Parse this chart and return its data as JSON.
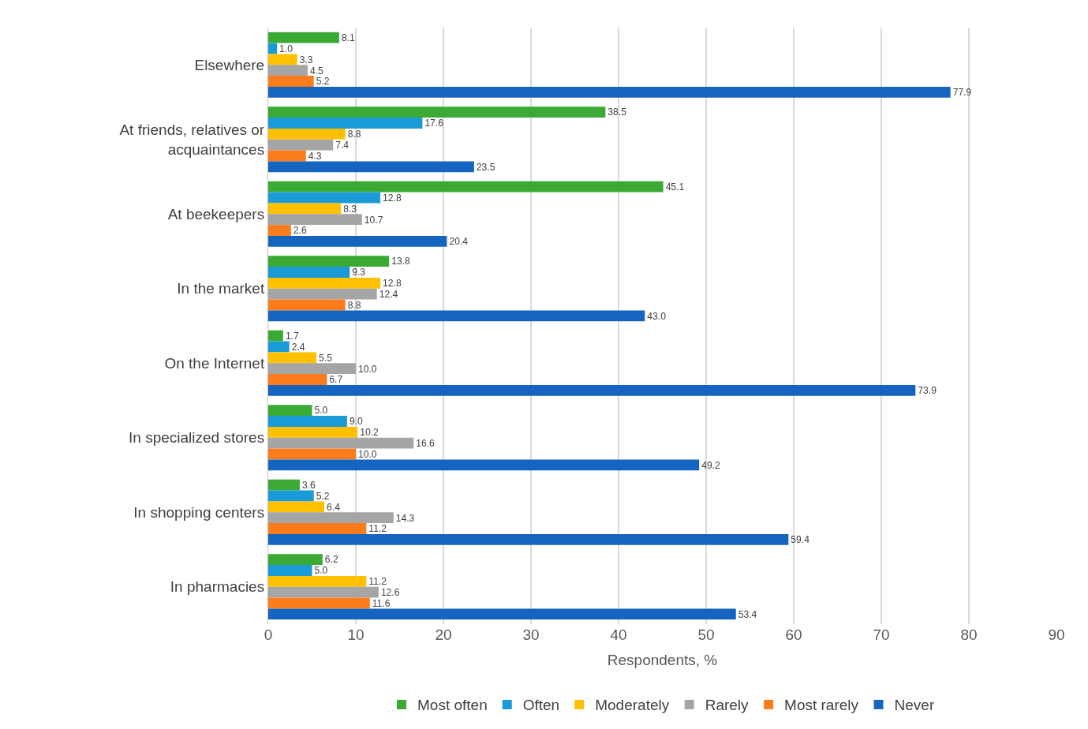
{
  "chart_data": {
    "type": "bar",
    "orientation": "horizontal",
    "xlabel": "Respondents, %",
    "categories": [
      "Elsewhere",
      "At friends, relatives or acquaintances",
      "At beekeepers",
      "In the market",
      "On the Internet",
      "In specialized stores",
      "In shopping centers",
      "In pharmacies"
    ],
    "series": [
      {
        "name": "Most often",
        "color": "#3aaa35",
        "values": [
          8.1,
          38.5,
          45.1,
          13.8,
          1.7,
          5.0,
          3.6,
          6.2
        ],
        "value_labels": [
          "8.1",
          "38.5",
          "45.1",
          "13.8",
          "1.7",
          "5.0",
          "3.6",
          "6.2"
        ]
      },
      {
        "name": "Often",
        "color": "#1a9ad6",
        "values": [
          1.0,
          17.6,
          12.8,
          9.3,
          2.4,
          9.0,
          5.2,
          5.0
        ],
        "value_labels": [
          "1.0",
          "17.6",
          "12.8",
          "9.3",
          "2.4",
          "9.0",
          "5.2",
          "5.0"
        ]
      },
      {
        "name": "Moderately",
        "color": "#ffc000",
        "values": [
          3.3,
          8.8,
          8.3,
          12.8,
          5.5,
          10.2,
          6.4,
          11.2
        ],
        "value_labels": [
          "3.3",
          "8.8",
          "8.3",
          "12.8",
          "5.5",
          "10.2",
          "6.4",
          "11.2"
        ]
      },
      {
        "name": "Rarely",
        "color": "#a5a5a5",
        "values": [
          4.5,
          7.4,
          10.7,
          12.4,
          10.0,
          16.6,
          14.3,
          12.6
        ],
        "value_labels": [
          "4.5",
          "7.4",
          "10.7",
          "12.4",
          "10.0",
          "16.6",
          "14.3",
          "12.6"
        ]
      },
      {
        "name": "Most rarely",
        "color": "#fb7c1c",
        "values": [
          5.2,
          4.3,
          2.6,
          8.8,
          6.7,
          10.0,
          11.2,
          11.6
        ],
        "value_labels": [
          "5.2",
          "4.3",
          "2.6",
          "8.8",
          "6.7",
          "10.0",
          "11.2",
          "11.6"
        ]
      },
      {
        "name": "Never",
        "color": "#1565c0",
        "values": [
          77.9,
          23.5,
          20.4,
          43.0,
          73.9,
          49.2,
          59.4,
          53.4
        ],
        "value_labels": [
          "77.9",
          "23.5",
          "20.4",
          "43.0",
          "73.9",
          "49.2",
          "59.4",
          "53.4"
        ]
      }
    ],
    "xlim": [
      0,
      90
    ],
    "xticks": [
      0,
      10,
      20,
      30,
      40,
      50,
      60,
      70,
      80,
      90
    ],
    "grid": "x",
    "legend": "bottom"
  }
}
